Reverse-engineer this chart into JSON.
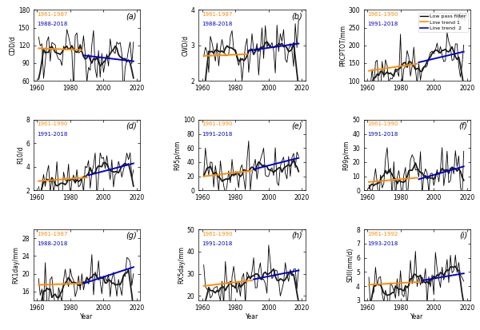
{
  "panels": [
    {
      "label": "(a)",
      "ylabel": "CDD/d",
      "ylim": [
        60,
        180
      ],
      "yticks": [
        60,
        90,
        120,
        150,
        180
      ],
      "period1": "1961-1987",
      "period2": "1988-2018",
      "split_year": 1987,
      "trend1": [
        115,
        112
      ],
      "trend2": [
        103,
        93
      ],
      "smooth_seed": 1
    },
    {
      "label": "(b)",
      "ylabel": "CWD/d",
      "ylim": [
        2,
        4
      ],
      "yticks": [
        2,
        3,
        4
      ],
      "period1": "1961-1987",
      "period2": "1988-2018",
      "split_year": 1987,
      "trend1": [
        2.7,
        2.75
      ],
      "trend2": [
        2.85,
        3.05
      ],
      "smooth_seed": 2
    },
    {
      "label": "(c)",
      "ylabel": "PRCPTOT/mm",
      "ylim": [
        100,
        300
      ],
      "yticks": [
        100,
        150,
        200,
        250,
        300
      ],
      "period1": "1961-1990",
      "period2": "1991-2018",
      "split_year": 1990,
      "trend1": [
        128,
        148
      ],
      "trend2": [
        152,
        182
      ],
      "smooth_seed": 3,
      "legend_panel": true
    },
    {
      "label": "(d)",
      "ylabel": "R10/d",
      "ylim": [
        2,
        8
      ],
      "yticks": [
        2,
        4,
        6,
        8
      ],
      "period1": "1961-1990",
      "period2": "1991-2018",
      "split_year": 1990,
      "trend1": [
        2.8,
        3.1
      ],
      "trend2": [
        3.3,
        4.3
      ],
      "smooth_seed": 4
    },
    {
      "label": "(e)",
      "ylabel": "R95p/mm",
      "ylim": [
        0,
        100
      ],
      "yticks": [
        0,
        20,
        40,
        60,
        80,
        100
      ],
      "period1": "1961-1990",
      "period2": "1991-2018",
      "split_year": 1990,
      "trend1": [
        20,
        28
      ],
      "trend2": [
        30,
        46
      ],
      "smooth_seed": 5
    },
    {
      "label": "(f)",
      "ylabel": "R99p/mm",
      "ylim": [
        0,
        50
      ],
      "yticks": [
        0,
        10,
        20,
        30,
        40,
        50
      ],
      "period1": "1961-1990",
      "period2": "1991-2018",
      "split_year": 1990,
      "trend1": [
        6,
        9
      ],
      "trend2": [
        8,
        17
      ],
      "smooth_seed": 6
    },
    {
      "label": "(g)",
      "ylabel": "RX1day/mm",
      "ylim": [
        14,
        30
      ],
      "yticks": [
        16,
        20,
        24,
        28
      ],
      "period1": "1961-1987",
      "period2": "1988-2018",
      "split_year": 1987,
      "trend1": [
        17.5,
        17.8
      ],
      "trend2": [
        17.8,
        21.5
      ],
      "smooth_seed": 7
    },
    {
      "label": "(h)",
      "ylabel": "RX5day/mm",
      "ylim": [
        18,
        50
      ],
      "yticks": [
        20,
        30,
        40,
        50
      ],
      "period1": "1961-1990",
      "period2": "1991-2018",
      "split_year": 1990,
      "trend1": [
        24.5,
        27.0
      ],
      "trend2": [
        27.5,
        31.5
      ],
      "smooth_seed": 8
    },
    {
      "label": "(i)",
      "ylabel": "SDII(mm/d)",
      "ylim": [
        3,
        8
      ],
      "yticks": [
        3,
        4,
        5,
        6,
        7,
        8
      ],
      "period1": "1961-1992",
      "period2": "1993-2018",
      "split_year": 1992,
      "trend1": [
        4.1,
        4.3
      ],
      "trend2": [
        4.4,
        4.9
      ],
      "smooth_seed": 9
    }
  ],
  "years_start": 1961,
  "years_end": 2018,
  "color_line": "#000000",
  "color_trend1": "#FF8C00",
  "color_trend2": "#0000CD",
  "color_smooth": "#1a1a1a",
  "xlabel": "Year",
  "xlim": [
    1958,
    2022
  ],
  "xticks": [
    1960,
    1980,
    2000,
    2020
  ]
}
